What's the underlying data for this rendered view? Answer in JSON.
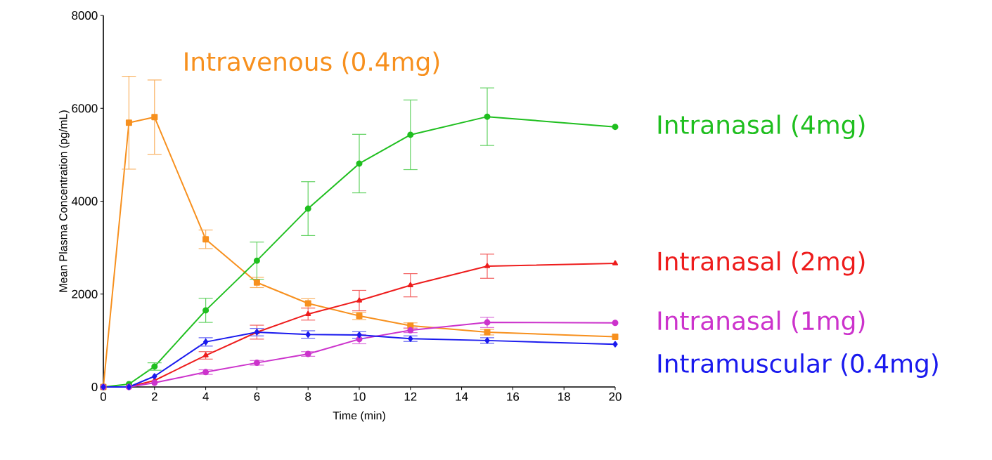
{
  "chart_data": {
    "type": "line",
    "xlabel": "Time (min)",
    "ylabel": "Mean Plasma Concentration (pg/mL)",
    "x": [
      0,
      1,
      2,
      4,
      6,
      8,
      10,
      12,
      15,
      20
    ],
    "xlim": [
      0,
      20
    ],
    "xticks": [
      0,
      2,
      4,
      6,
      8,
      10,
      12,
      14,
      16,
      18,
      20
    ],
    "ylim": [
      0,
      8000
    ],
    "yticks": [
      0,
      2000,
      4000,
      6000,
      8000
    ],
    "series": [
      {
        "name": "Intravenous (0.4mg)",
        "color": "#f7901e",
        "marker": "square",
        "values": [
          0,
          5690,
          5810,
          3180,
          2250,
          1800,
          1530,
          1320,
          1180,
          1080
        ],
        "errors": [
          null,
          1000,
          800,
          200,
          110,
          100,
          80,
          60,
          60,
          null
        ]
      },
      {
        "name": "Intranasal (4mg)",
        "color": "#1fbf1f",
        "marker": "circle",
        "values": [
          0,
          60,
          440,
          1650,
          2720,
          3840,
          4810,
          5430,
          5820,
          5600
        ],
        "errors": [
          null,
          null,
          80,
          260,
          400,
          580,
          630,
          750,
          620,
          null
        ]
      },
      {
        "name": "Intranasal (2mg)",
        "color": "#ee1c1c",
        "marker": "triangle",
        "values": [
          0,
          0,
          140,
          680,
          1180,
          1570,
          1860,
          2190,
          2600,
          2660
        ],
        "errors": [
          null,
          null,
          null,
          80,
          150,
          130,
          220,
          250,
          260,
          null
        ]
      },
      {
        "name": "Intranasal (1mg)",
        "color": "#cc33cc",
        "marker": "circle",
        "values": [
          0,
          0,
          90,
          320,
          520,
          710,
          1030,
          1220,
          1390,
          1380
        ],
        "errors": [
          null,
          null,
          null,
          50,
          50,
          50,
          100,
          50,
          110,
          null
        ]
      },
      {
        "name": "Intramuscular (0.4mg)",
        "color": "#1a1aee",
        "marker": "diamond",
        "values": [
          0,
          0,
          230,
          970,
          1180,
          1130,
          1120,
          1040,
          1000,
          920
        ],
        "errors": [
          null,
          null,
          null,
          90,
          80,
          80,
          70,
          60,
          60,
          null
        ]
      }
    ]
  }
}
